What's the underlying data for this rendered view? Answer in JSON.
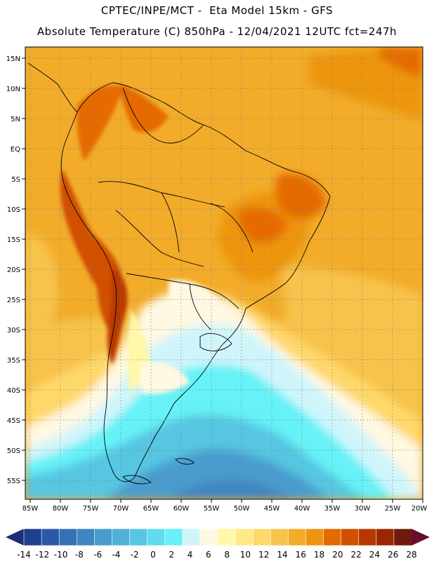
{
  "header": {
    "line1": "CPTEC/INPE/MCT -  Eta Model 15km - GFS",
    "line2": "Absolute Temperature (C) 850hPa - 12/04/2021 12UTC fct=247h"
  },
  "map": {
    "lat_labels": [
      "15N",
      "10N",
      "5N",
      "EQ",
      "5S",
      "10S",
      "15S",
      "20S",
      "25S",
      "30S",
      "35S",
      "40S",
      "45S",
      "50S",
      "55S"
    ],
    "lon_labels": [
      "85W",
      "80W",
      "75W",
      "70W",
      "65W",
      "60W",
      "55W",
      "50W",
      "45W",
      "40W",
      "35W",
      "30W",
      "25W",
      "20W"
    ]
  },
  "colorbar": {
    "labels": [
      "-14",
      "-12",
      "-10",
      "-8",
      "-6",
      "-4",
      "-2",
      "0",
      "2",
      "4",
      "6",
      "8",
      "10",
      "12",
      "14",
      "16",
      "18",
      "20",
      "22",
      "24",
      "26",
      "28"
    ],
    "colors": [
      "#1f3f8f",
      "#2a5aa6",
      "#3571b5",
      "#3f86c2",
      "#4a9ccd",
      "#50b1d8",
      "#57c6e2",
      "#5fdced",
      "#66f2f7",
      "#cff5fb",
      "#fff8e2",
      "#fff8a8",
      "#ffe98a",
      "#ffd86a",
      "#f7c34b",
      "#f2ac2a",
      "#ec9510",
      "#e56a00",
      "#d14f00",
      "#b83700",
      "#9b2600",
      "#6f1a0c"
    ],
    "low_arrow_color": "#1b2f74",
    "high_arrow_color": "#6a0c2e"
  }
}
